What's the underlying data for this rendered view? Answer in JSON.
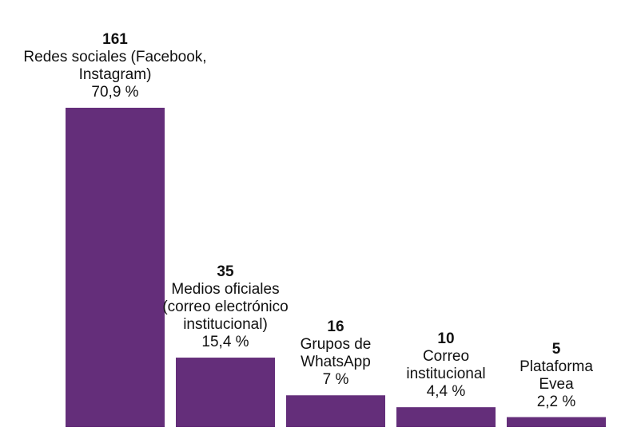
{
  "chart_data": {
    "type": "bar",
    "categories": [
      [
        "Redes sociales (Facebook,",
        "Instagram)"
      ],
      [
        "Medios oficiales",
        "(correo electrónico",
        "institucional)"
      ],
      [
        "Grupos de",
        "WhatsApp"
      ],
      [
        "Correo",
        "institucional"
      ],
      [
        "Plataforma",
        "Evea"
      ]
    ],
    "values": [
      161,
      35,
      16,
      10,
      5
    ],
    "value_labels": [
      "161",
      "35",
      "16",
      "10",
      "5"
    ],
    "percent_labels": [
      "70,9 %",
      "15,4 %",
      "7 %",
      "4,4 %",
      "2,2 %"
    ],
    "ylim": [
      0,
      161
    ],
    "bar_color": "#642e7a",
    "grid": false,
    "legend": "none"
  }
}
